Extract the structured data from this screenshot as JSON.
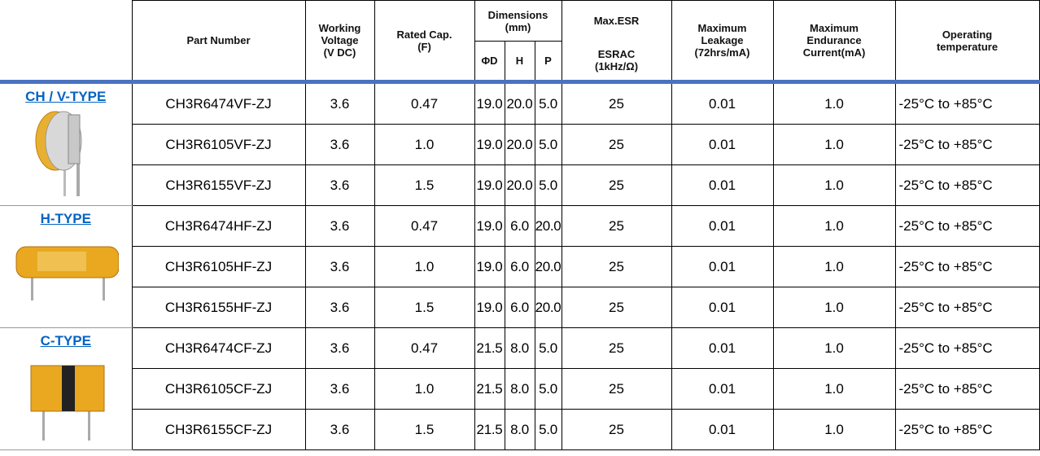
{
  "header": {
    "part_number": "Part Number",
    "working_voltage": [
      "Working",
      "Voltage",
      "(V DC)"
    ],
    "rated_cap": [
      "Rated Cap.",
      "(F)"
    ],
    "dimensions": [
      "Dimensions",
      "(mm)"
    ],
    "dim_d": "ΦD",
    "dim_h": "H",
    "dim_p": "P",
    "max_esr": "Max.ESR",
    "esrac": [
      "ESRAC",
      "(1kHz/Ω)"
    ],
    "max_leakage": [
      "Maximum",
      "Leakage",
      "(72hrs/mA)"
    ],
    "max_endurance": [
      "Maximum",
      "Endurance",
      "Current(mA)"
    ],
    "operating_temp": [
      "Operating",
      "temperature"
    ]
  },
  "groups": [
    {
      "label": "CH / V-TYPE",
      "rows": [
        [
          "CH3R6474VF-ZJ",
          "3.6",
          "0.47",
          "19.0",
          "20.0",
          "5.0",
          "25",
          "0.01",
          "1.0",
          "-25°C to +85°C"
        ],
        [
          "CH3R6105VF-ZJ",
          "3.6",
          "1.0",
          "19.0",
          "20.0",
          "5.0",
          "25",
          "0.01",
          "1.0",
          "-25°C to +85°C"
        ],
        [
          "CH3R6155VF-ZJ",
          "3.6",
          "1.5",
          "19.0",
          "20.0",
          "5.0",
          "25",
          "0.01",
          "1.0",
          "-25°C to +85°C"
        ]
      ]
    },
    {
      "label": "H-TYPE",
      "rows": [
        [
          "CH3R6474HF-ZJ",
          "3.6",
          "0.47",
          "19.0",
          "6.0",
          "20.0",
          "25",
          "0.01",
          "1.0",
          "-25°C to +85°C"
        ],
        [
          "CH3R6105HF-ZJ",
          "3.6",
          "1.0",
          "19.0",
          "6.0",
          "20.0",
          "25",
          "0.01",
          "1.0",
          "-25°C to +85°C"
        ],
        [
          "CH3R6155HF-ZJ",
          "3.6",
          "1.5",
          "19.0",
          "6.0",
          "20.0",
          "25",
          "0.01",
          "1.0",
          "-25°C to +85°C"
        ]
      ]
    },
    {
      "label": "C-TYPE",
      "rows": [
        [
          "CH3R6474CF-ZJ",
          "3.6",
          "0.47",
          "21.5",
          "8.0",
          "5.0",
          "25",
          "0.01",
          "1.0",
          "-25°C to +85°C"
        ],
        [
          "CH3R6105CF-ZJ",
          "3.6",
          "1.0",
          "21.5",
          "8.0",
          "5.0",
          "25",
          "0.01",
          "1.0",
          "-25°C to +85°C"
        ],
        [
          "CH3R6155CF-ZJ",
          "3.6",
          "1.5",
          "21.5",
          "8.0",
          "5.0",
          "25",
          "0.01",
          "1.0",
          "-25°C to +85°C"
        ]
      ]
    }
  ]
}
